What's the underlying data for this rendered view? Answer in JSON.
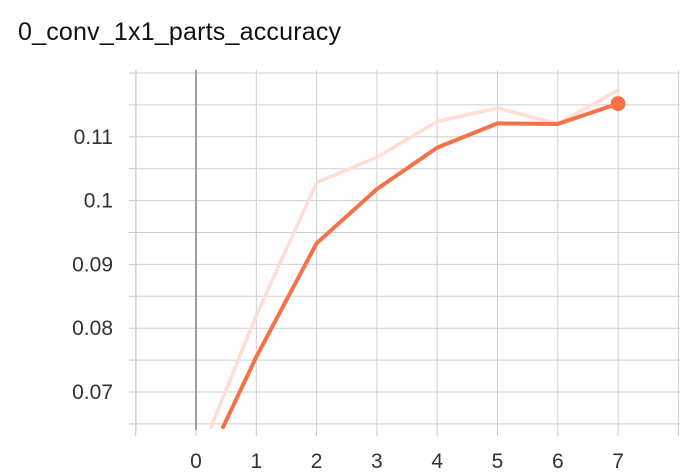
{
  "chart_data": {
    "type": "line",
    "title": "0_conv_1x1_parts_accuracy",
    "xlabel": "",
    "ylabel": "",
    "xlim": [
      -1,
      8
    ],
    "ylim": [
      0.0645,
      0.121
    ],
    "x_ticks": [
      "0",
      "1",
      "2",
      "3",
      "4",
      "5",
      "6",
      "7"
    ],
    "y_ticks": [
      "0.07",
      "0.08",
      "0.09",
      "0.1",
      "0.11"
    ],
    "grid": true,
    "series": [
      {
        "style": "raw",
        "color": "#ffddd2",
        "x": [
          0.25,
          1,
          2,
          3,
          4,
          5,
          6,
          7
        ],
        "y": [
          0.0645,
          0.082,
          0.1028,
          0.1068,
          0.1124,
          0.1145,
          0.112,
          0.1173
        ]
      },
      {
        "style": "smoothed",
        "color": "#f4724a",
        "x": [
          0.45,
          1,
          2,
          3,
          4,
          5,
          6,
          7
        ],
        "y": [
          0.0645,
          0.0755,
          0.0933,
          0.1018,
          0.1083,
          0.1121,
          0.112,
          0.1152
        ]
      }
    ]
  }
}
